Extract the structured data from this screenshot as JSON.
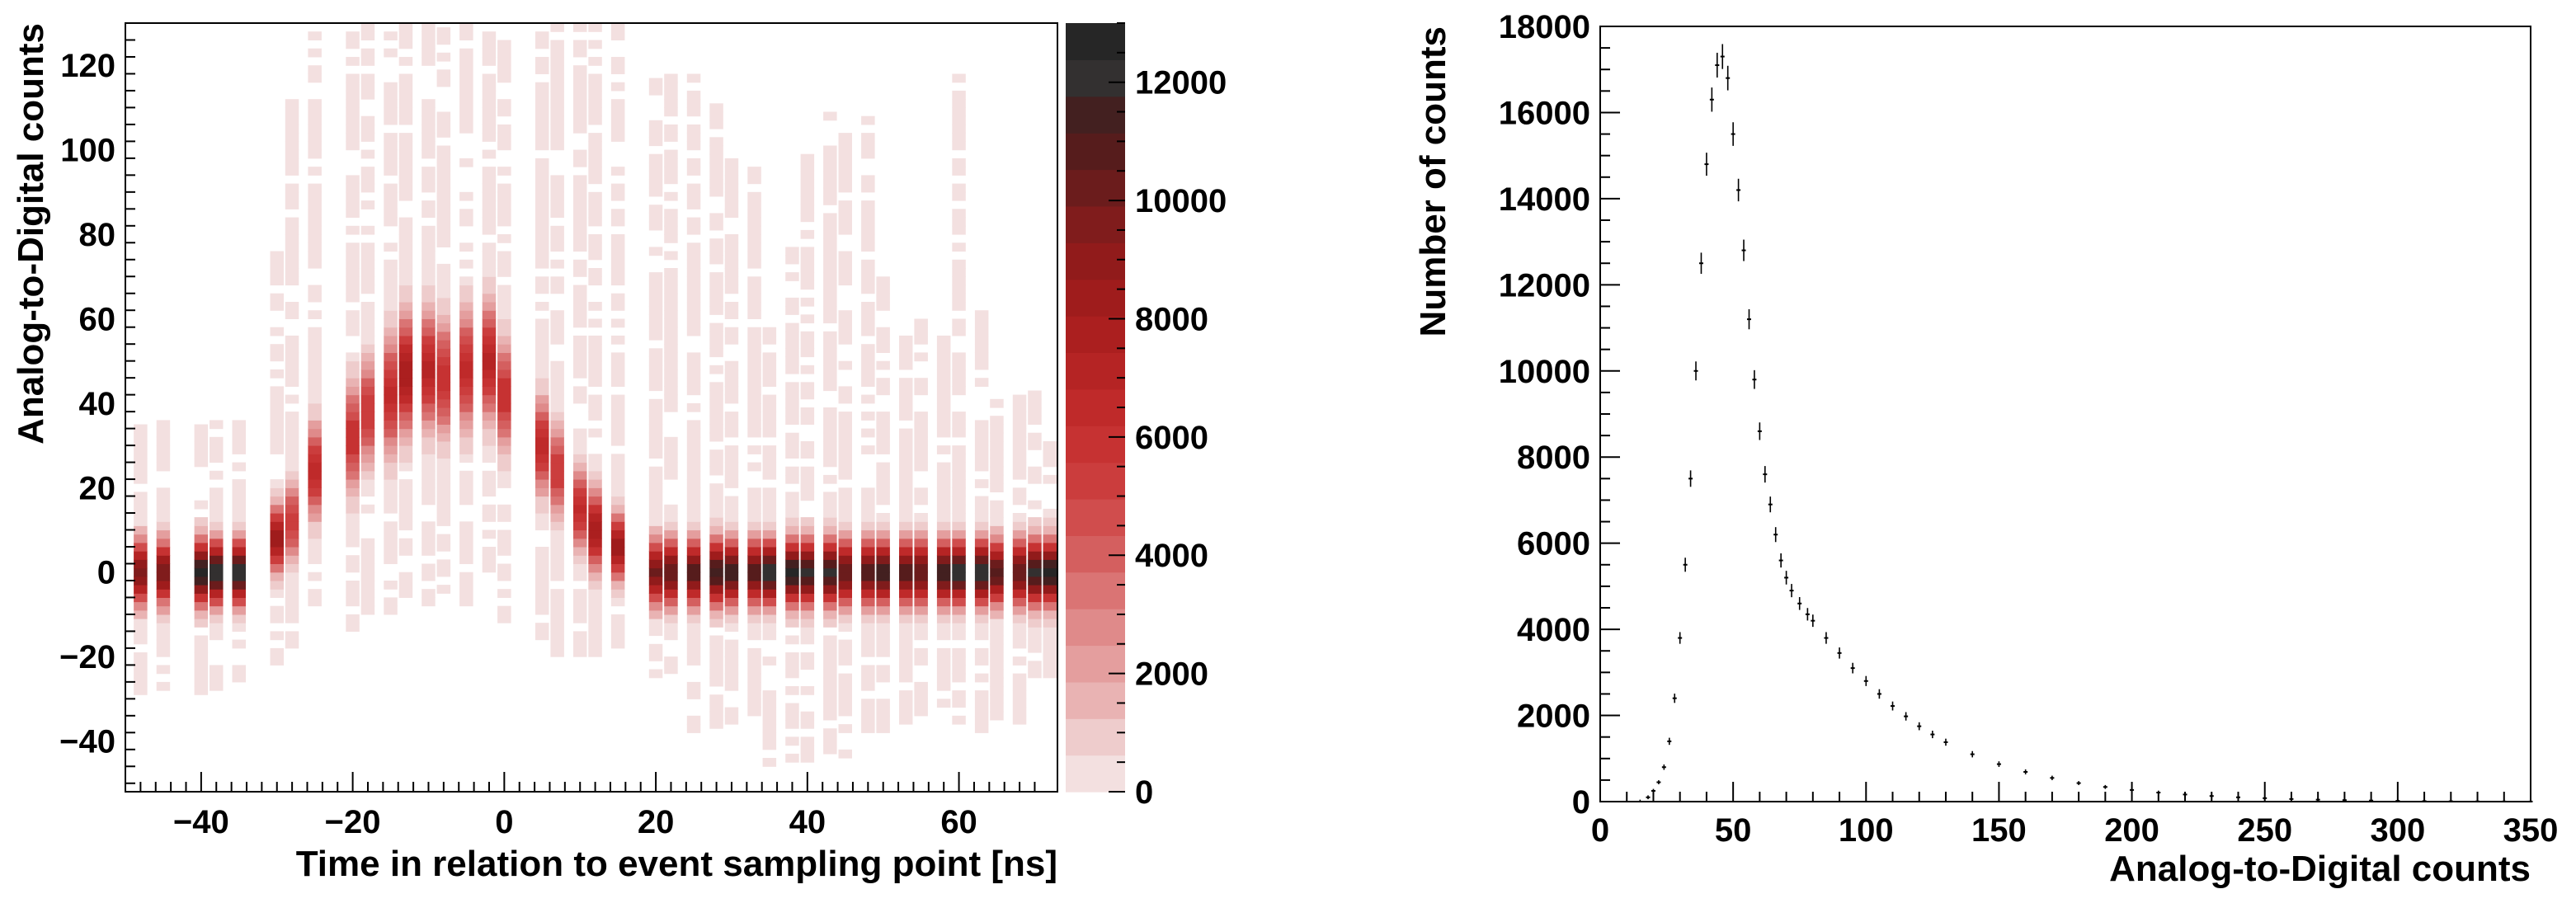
{
  "chart_data": [
    {
      "type": "heatmap",
      "xlabel": "Time in relation to event sampling point [ns]",
      "ylabel": "Analog-to-Digital counts",
      "xlim": [
        -50,
        73
      ],
      "ylim": [
        -52,
        130
      ],
      "xticks": [
        -40,
        -20,
        0,
        20,
        40,
        60
      ],
      "yticks": [
        -40,
        -20,
        0,
        20,
        40,
        60,
        80,
        100,
        120
      ],
      "zlim": [
        0,
        13000
      ],
      "zticks": [
        0,
        2000,
        4000,
        6000,
        8000,
        10000,
        12000
      ],
      "palette": [
        "#f3e0e0",
        "#eecccc",
        "#e9b3b3",
        "#e49e9e",
        "#df8a8a",
        "#da7474",
        "#d45f5f",
        "#d04d4d",
        "#cb3d3d",
        "#c63232",
        "#bf2a2a",
        "#b52424",
        "#ab1f1f",
        "#9f1c1c",
        "#911b1b",
        "#801c1c",
        "#6b1c1c",
        "#561c1c",
        "#432020",
        "#333030",
        "#262626"
      ],
      "columns": [
        {
          "t": -48,
          "center": 0,
          "spread": 5,
          "low": -29,
          "high": 34,
          "peak": 9500
        },
        {
          "t": -45,
          "center": 0,
          "spread": 5,
          "low": -28,
          "high": 36,
          "peak": 9800
        },
        {
          "t": -40,
          "center": 0,
          "spread": 5,
          "low": -31,
          "high": 34,
          "peak": 12500
        },
        {
          "t": -38,
          "center": 0,
          "spread": 5,
          "low": -28,
          "high": 36,
          "peak": 12000
        },
        {
          "t": -35,
          "center": 0,
          "spread": 5,
          "low": -26,
          "high": 35,
          "peak": 12200
        },
        {
          "t": -30,
          "center": 8,
          "spread": 5,
          "low": -22,
          "high": 76,
          "peak": 8500
        },
        {
          "t": -28,
          "center": 12,
          "spread": 6,
          "low": -18,
          "high": 114,
          "peak": 5500
        },
        {
          "t": -25,
          "center": 24,
          "spread": 7,
          "low": -12,
          "high": 130,
          "peak": 6500
        },
        {
          "t": -20,
          "center": 32,
          "spread": 8,
          "low": -14,
          "high": 130,
          "peak": 6000
        },
        {
          "t": -18,
          "center": 38,
          "spread": 8,
          "low": -12,
          "high": 130,
          "peak": 5500
        },
        {
          "t": -15,
          "center": 42,
          "spread": 9,
          "low": -10,
          "high": 130,
          "peak": 6500
        },
        {
          "t": -13,
          "center": 47,
          "spread": 9,
          "low": -6,
          "high": 130,
          "peak": 8000
        },
        {
          "t": -10,
          "center": 48,
          "spread": 9,
          "low": -8,
          "high": 130,
          "peak": 7000
        },
        {
          "t": -8,
          "center": 46,
          "spread": 9,
          "low": -5,
          "high": 130,
          "peak": 6000
        },
        {
          "t": -5,
          "center": 48,
          "spread": 9,
          "low": -10,
          "high": 130,
          "peak": 6500
        },
        {
          "t": -2,
          "center": 50,
          "spread": 9,
          "low": 0,
          "high": 130,
          "peak": 7000
        },
        {
          "t": 0,
          "center": 42,
          "spread": 8,
          "low": -12,
          "high": 130,
          "peak": 6000
        },
        {
          "t": 5,
          "center": 30,
          "spread": 7,
          "low": -22,
          "high": 130,
          "peak": 6500
        },
        {
          "t": 7,
          "center": 24,
          "spread": 7,
          "low": -20,
          "high": 130,
          "peak": 5500
        },
        {
          "t": 10,
          "center": 15,
          "spread": 6,
          "low": -20,
          "high": 130,
          "peak": 6500
        },
        {
          "t": 12,
          "center": 10,
          "spread": 6,
          "low": -20,
          "high": 130,
          "peak": 8000
        },
        {
          "t": 15,
          "center": 6,
          "spread": 5,
          "low": -20,
          "high": 130,
          "peak": 8500
        },
        {
          "t": 20,
          "center": 0,
          "spread": 5,
          "low": -27,
          "high": 120,
          "peak": 10000
        },
        {
          "t": 22,
          "center": 0,
          "spread": 5,
          "low": -26,
          "high": 120,
          "peak": 10500
        },
        {
          "t": 25,
          "center": 0,
          "spread": 5,
          "low": -38,
          "high": 118,
          "peak": 11000
        },
        {
          "t": 28,
          "center": 0,
          "spread": 5,
          "low": -37,
          "high": 110,
          "peak": 11500
        },
        {
          "t": 30,
          "center": 0,
          "spread": 5,
          "low": -36,
          "high": 100,
          "peak": 11500
        },
        {
          "t": 33,
          "center": 0,
          "spread": 5,
          "low": -34,
          "high": 95,
          "peak": 11000
        },
        {
          "t": 35,
          "center": 0,
          "spread": 5,
          "low": -46,
          "high": 60,
          "peak": 12500
        },
        {
          "t": 38,
          "center": 0,
          "spread": 5,
          "low": -47,
          "high": 78,
          "peak": 12500
        },
        {
          "t": 40,
          "center": 0,
          "spread": 5,
          "low": -45,
          "high": 98,
          "peak": 12000
        },
        {
          "t": 43,
          "center": 0,
          "spread": 5,
          "low": -43,
          "high": 108,
          "peak": 12000
        },
        {
          "t": 45,
          "center": 0,
          "spread": 5,
          "low": -44,
          "high": 106,
          "peak": 10500
        },
        {
          "t": 48,
          "center": 0,
          "spread": 5,
          "low": -38,
          "high": 108,
          "peak": 11000
        },
        {
          "t": 50,
          "center": 0,
          "spread": 5,
          "low": -38,
          "high": 70,
          "peak": 11500
        },
        {
          "t": 53,
          "center": 0,
          "spread": 5,
          "low": -36,
          "high": 55,
          "peak": 11000
        },
        {
          "t": 55,
          "center": 0,
          "spread": 5,
          "low": -34,
          "high": 62,
          "peak": 10500
        },
        {
          "t": 58,
          "center": 0,
          "spread": 5,
          "low": -34,
          "high": 56,
          "peak": 11500
        },
        {
          "t": 60,
          "center": 0,
          "spread": 5,
          "low": -36,
          "high": 118,
          "peak": 12000
        },
        {
          "t": 63,
          "center": 0,
          "spread": 5,
          "low": -38,
          "high": 62,
          "peak": 12500
        },
        {
          "t": 65,
          "center": 0,
          "spread": 5,
          "low": -35,
          "high": 40,
          "peak": 11000
        },
        {
          "t": 68,
          "center": 0,
          "spread": 5,
          "low": -36,
          "high": 42,
          "peak": 10500
        },
        {
          "t": 70,
          "center": 0,
          "spread": 5,
          "low": -25,
          "high": 42,
          "peak": 12000
        },
        {
          "t": 72,
          "center": 0,
          "spread": 5,
          "low": -25,
          "high": 32,
          "peak": 12500
        }
      ]
    },
    {
      "type": "scatter",
      "xlabel": "Analog-to-Digital counts",
      "ylabel": "Number of counts",
      "xlim": [
        0,
        350
      ],
      "ylim": [
        0,
        18000
      ],
      "xticks": [
        0,
        50,
        100,
        150,
        200,
        250,
        300,
        350
      ],
      "yticks": [
        0,
        2000,
        4000,
        6000,
        8000,
        10000,
        12000,
        14000,
        16000,
        18000
      ],
      "x": [
        15,
        18,
        20,
        22,
        24,
        26,
        28,
        30,
        32,
        34,
        36,
        38,
        40,
        42,
        44,
        46,
        48,
        50,
        52,
        54,
        56,
        58,
        60,
        62,
        64,
        66,
        68,
        70,
        72,
        75,
        78,
        80,
        85,
        90,
        95,
        100,
        105,
        110,
        115,
        120,
        125,
        130,
        140,
        150,
        160,
        170,
        180,
        190,
        200,
        210,
        220,
        230,
        240,
        250,
        260,
        270,
        280,
        290,
        300,
        310,
        320,
        330,
        340,
        350
      ],
      "y": [
        0,
        100,
        250,
        450,
        800,
        1400,
        2400,
        3800,
        5500,
        7500,
        10000,
        12500,
        14800,
        16300,
        17100,
        17300,
        16800,
        15500,
        14200,
        12800,
        11200,
        9800,
        8600,
        7600,
        6900,
        6200,
        5600,
        5200,
        4900,
        4600,
        4350,
        4200,
        3800,
        3450,
        3100,
        2800,
        2500,
        2220,
        1980,
        1750,
        1560,
        1380,
        1100,
        870,
        690,
        550,
        430,
        340,
        270,
        210,
        165,
        130,
        100,
        80,
        60,
        45,
        35,
        25,
        18,
        12,
        8,
        5,
        3,
        2
      ]
    }
  ]
}
